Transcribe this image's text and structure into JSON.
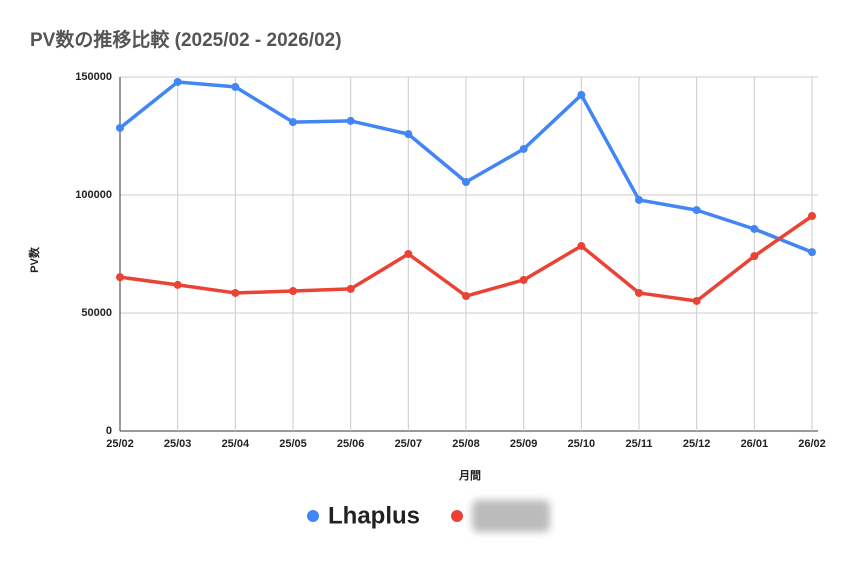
{
  "chart_data": {
    "type": "line",
    "title": "PV数の推移比較 (2025/02 - 2026/02)",
    "x_label": "月間",
    "y_label": "PV数",
    "categories": [
      "25/02",
      "25/03",
      "25/04",
      "25/05",
      "25/06",
      "25/07",
      "25/08",
      "25/09",
      "25/10",
      "25/11",
      "25/12",
      "26/01",
      "26/02"
    ],
    "series": [
      {
        "name": "Lhaplus",
        "color": "#4285f4",
        "values": [
          128400,
          147900,
          145800,
          130900,
          131400,
          125800,
          105500,
          119500,
          142400,
          97900,
          93600,
          85600,
          75800
        ]
      },
      {
        "color": "#ea4335",
        "values": [
          65200,
          61900,
          58500,
          59300,
          60200,
          75000,
          57200,
          64000,
          78400,
          58500,
          55100,
          74100,
          91100
        ]
      }
    ],
    "ylim": [
      0,
      150000
    ],
    "yticks": [
      0,
      50000,
      100000,
      150000
    ],
    "grid": true
  }
}
